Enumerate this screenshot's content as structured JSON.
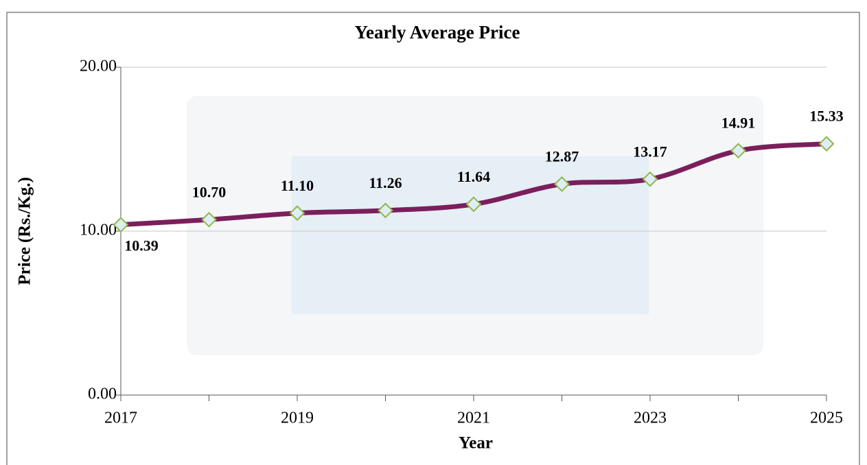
{
  "chart_data": {
    "type": "line",
    "title": "Yearly Average Price",
    "x_label": "Year",
    "y_label": "Price (Rs./Kg.)",
    "x": [
      2017,
      2018,
      2019,
      2020,
      2021,
      2022,
      2023,
      2024,
      2025
    ],
    "series": [
      {
        "name": "Yearly Average Price",
        "color": "#7b1f5c",
        "values": [
          10.39,
          10.7,
          11.1,
          11.26,
          11.64,
          12.87,
          13.17,
          14.91,
          15.33
        ],
        "value_labels": [
          "10.39",
          "10.70",
          "11.10",
          "11.26",
          "11.64",
          "12.87",
          "13.17",
          "14.91",
          "15.33"
        ]
      }
    ],
    "xlim": [
      2017,
      2025
    ],
    "xticks": [
      2017,
      2019,
      2021,
      2023,
      2025
    ],
    "ylim": [
      0,
      20
    ],
    "yticks": [
      {
        "value": 0,
        "label": "0.00"
      },
      {
        "value": 10,
        "label": "10.00"
      },
      {
        "value": 20,
        "label": "20.00"
      }
    ],
    "grid": true,
    "smooth": true
  }
}
